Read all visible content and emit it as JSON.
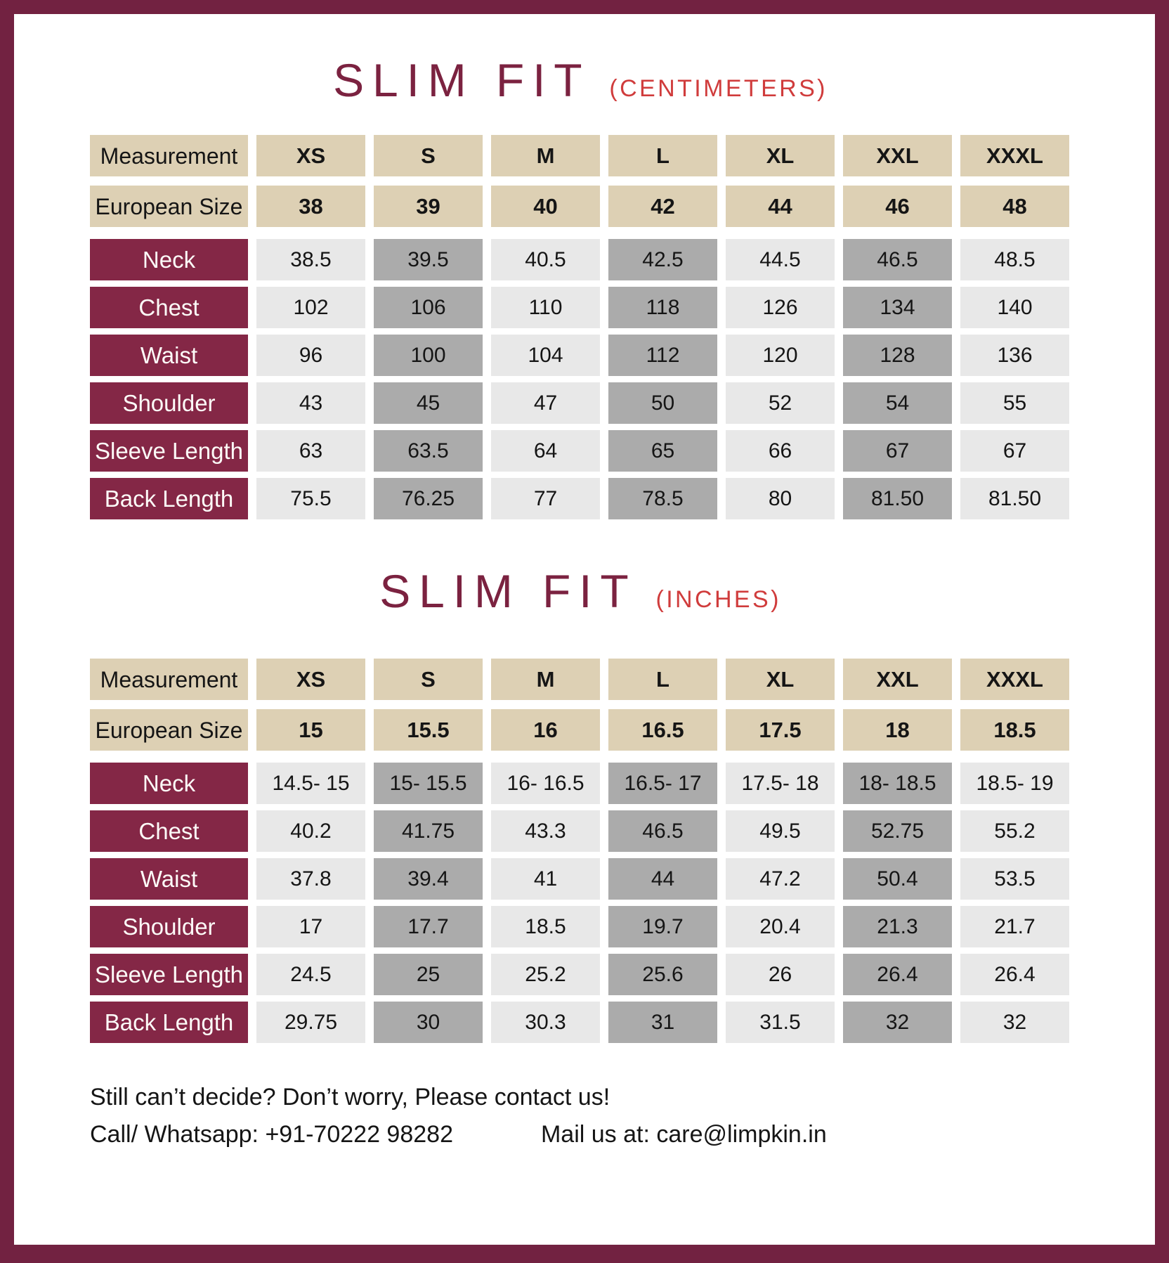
{
  "page": {
    "colors": {
      "frame": "#722241",
      "row_label_bg": "#842746",
      "header_bg": "#ddd0b4",
      "cell_light": "#e8e8e8",
      "cell_dark": "#ababab",
      "title_text": "#7b2240",
      "unit_text": "#d03c3c"
    }
  },
  "tables": [
    {
      "title": "SLIM FIT",
      "unit": "(CENTIMETERS)",
      "size_header": {
        "label": "Measurement",
        "sizes": [
          "XS",
          "S",
          "M",
          "L",
          "XL",
          "XXL",
          "XXXL"
        ]
      },
      "euro_row": {
        "label": "European Size",
        "values": [
          "38",
          "39",
          "40",
          "42",
          "44",
          "46",
          "48"
        ]
      },
      "rows": [
        {
          "label": "Neck",
          "values": [
            "38.5",
            "39.5",
            "40.5",
            "42.5",
            "44.5",
            "46.5",
            "48.5"
          ]
        },
        {
          "label": "Chest",
          "values": [
            "102",
            "106",
            "110",
            "118",
            "126",
            "134",
            "140"
          ]
        },
        {
          "label": "Waist",
          "values": [
            "96",
            "100",
            "104",
            "112",
            "120",
            "128",
            "136"
          ]
        },
        {
          "label": "Shoulder",
          "values": [
            "43",
            "45",
            "47",
            "50",
            "52",
            "54",
            "55"
          ]
        },
        {
          "label": "Sleeve Length",
          "values": [
            "63",
            "63.5",
            "64",
            "65",
            "66",
            "67",
            "67"
          ]
        },
        {
          "label": "Back Length",
          "values": [
            "75.5",
            "76.25",
            "77",
            "78.5",
            "80",
            "81.50",
            "81.50"
          ]
        }
      ]
    },
    {
      "title": "SLIM FIT",
      "unit": "(INCHES)",
      "size_header": {
        "label": "Measurement",
        "sizes": [
          "XS",
          "S",
          "M",
          "L",
          "XL",
          "XXL",
          "XXXL"
        ]
      },
      "euro_row": {
        "label": "European Size",
        "values": [
          "15",
          "15.5",
          "16",
          "16.5",
          "17.5",
          "18",
          "18.5"
        ]
      },
      "rows": [
        {
          "label": "Neck",
          "values": [
            "14.5- 15",
            "15- 15.5",
            "16- 16.5",
            "16.5- 17",
            "17.5- 18",
            "18- 18.5",
            "18.5- 19"
          ]
        },
        {
          "label": "Chest",
          "values": [
            "40.2",
            "41.75",
            "43.3",
            "46.5",
            "49.5",
            "52.75",
            "55.2"
          ]
        },
        {
          "label": "Waist",
          "values": [
            "37.8",
            "39.4",
            "41",
            "44",
            "47.2",
            "50.4",
            "53.5"
          ]
        },
        {
          "label": "Shoulder",
          "values": [
            "17",
            "17.7",
            "18.5",
            "19.7",
            "20.4",
            "21.3",
            "21.7"
          ]
        },
        {
          "label": "Sleeve Length",
          "values": [
            "24.5",
            "25",
            "25.2",
            "25.6",
            "26",
            "26.4",
            "26.4"
          ]
        },
        {
          "label": "Back Length",
          "values": [
            "29.75",
            "30",
            "30.3",
            "31",
            "31.5",
            "32",
            "32"
          ]
        }
      ]
    }
  ],
  "footer": {
    "line1": "Still can’t decide? Don’t worry, Please contact us!",
    "call": "Call/ Whatsapp: +91-70222 98282",
    "mail": "Mail us at: care@limpkin.in"
  }
}
